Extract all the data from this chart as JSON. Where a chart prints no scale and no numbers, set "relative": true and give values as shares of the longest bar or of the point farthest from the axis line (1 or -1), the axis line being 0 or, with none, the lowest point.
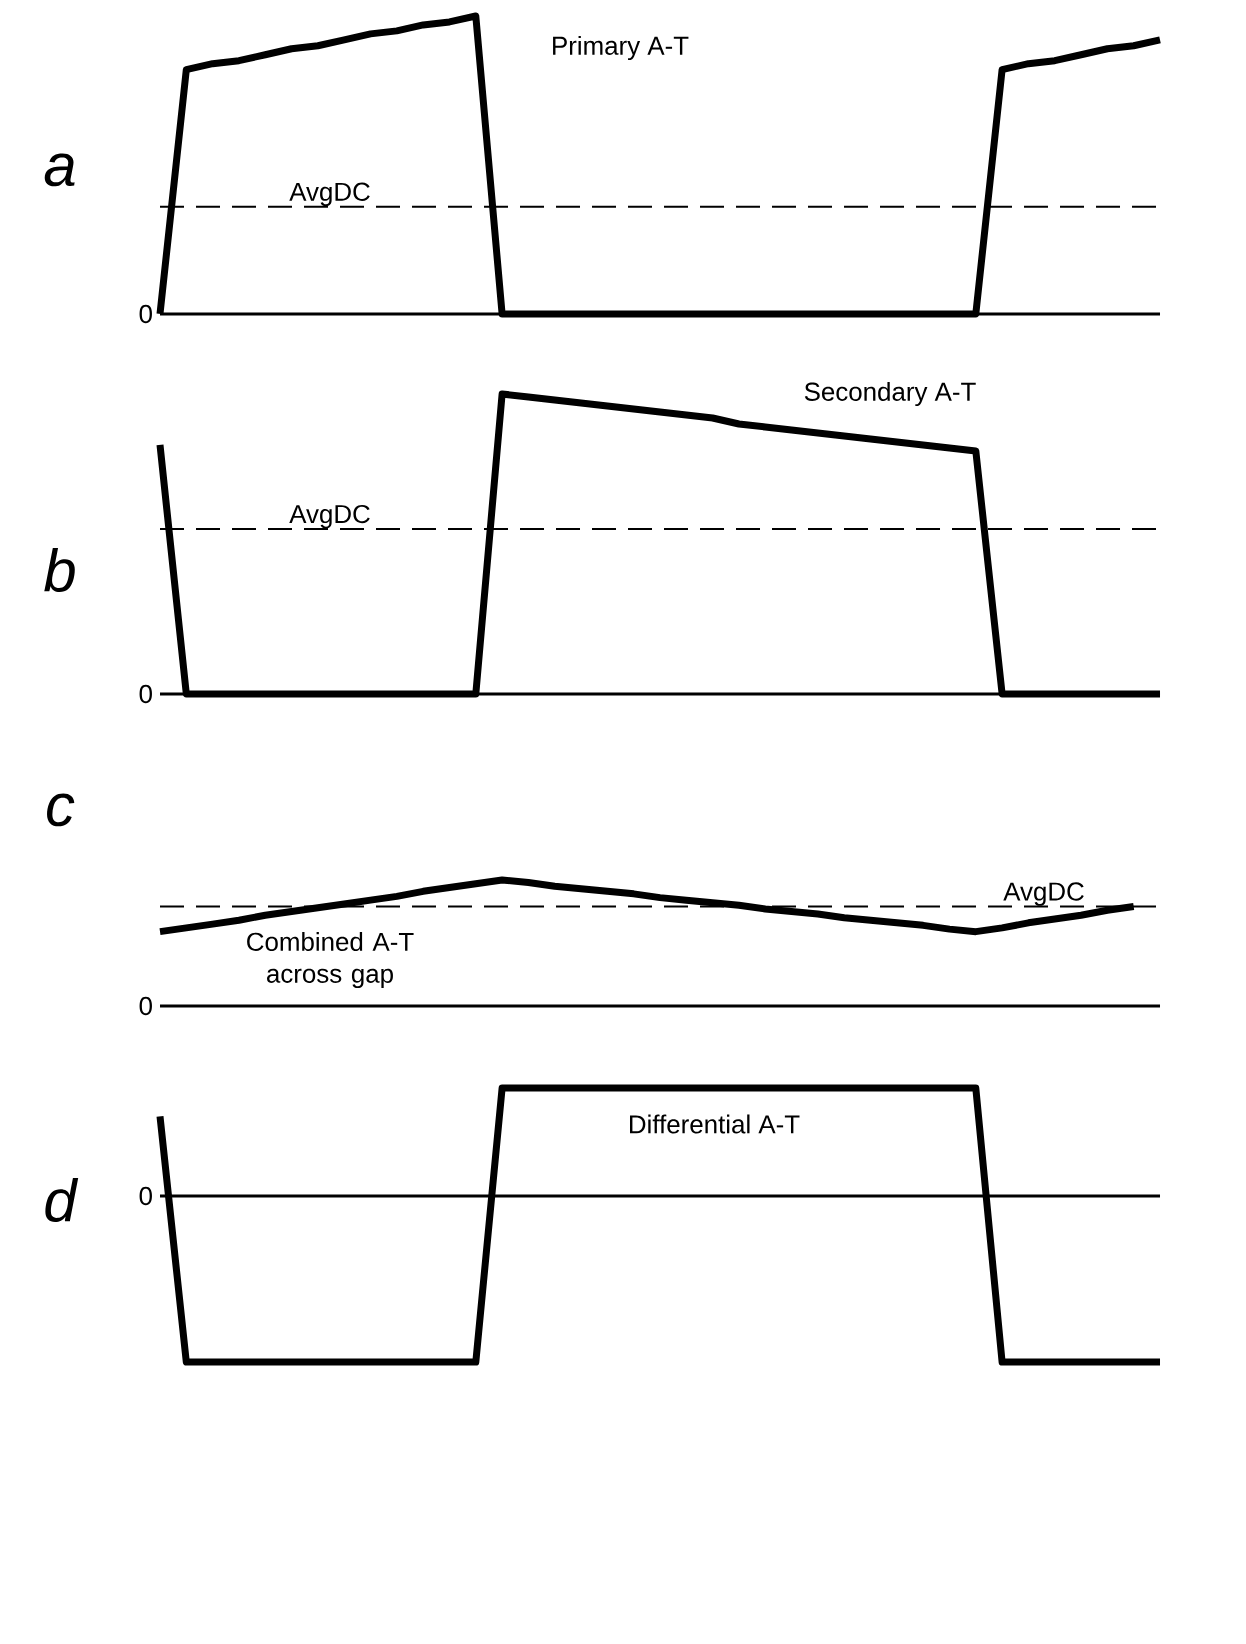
{
  "chart_data": [
    {
      "type": "line",
      "relative": true,
      "ylabel": "a",
      "marker": "none",
      "line_style": "solid",
      "categories": [
        null,
        null,
        null,
        null,
        null,
        null,
        null,
        null,
        null,
        null,
        null,
        null,
        null,
        null,
        null,
        null,
        null,
        null,
        null,
        null,
        null,
        null,
        null,
        null,
        null,
        null,
        null,
        null,
        null,
        null,
        null,
        null,
        null,
        null,
        null,
        null,
        null,
        null,
        null
      ],
      "series": [
        {
          "name": "Primary A-T",
          "color": "#000000",
          "values": [
            0,
            0.82,
            0.84,
            0.85,
            0.87,
            0.89,
            0.9,
            0.92,
            0.94,
            0.95,
            0.97,
            0.98,
            1.0,
            0,
            0,
            0,
            0,
            0,
            0,
            0,
            0,
            0,
            0,
            0,
            0,
            0,
            0,
            0,
            0,
            0,
            0,
            0,
            0.82,
            0.84,
            0.85,
            0.87,
            0.89,
            0.9,
            0.92
          ]
        }
      ],
      "ref_lines": [
        {
          "axis": "y",
          "value": 0,
          "label": "0",
          "line_style": "solid"
        },
        {
          "axis": "y",
          "value": 0.36,
          "label": "AvgDC",
          "line_style": "dashed"
        }
      ]
    },
    {
      "type": "line",
      "relative": true,
      "ylabel": "b",
      "marker": "none",
      "line_style": "solid",
      "categories": [
        null,
        null,
        null,
        null,
        null,
        null,
        null,
        null,
        null,
        null,
        null,
        null,
        null,
        null,
        null,
        null,
        null,
        null,
        null,
        null,
        null,
        null,
        null,
        null,
        null,
        null,
        null,
        null,
        null,
        null,
        null,
        null,
        null,
        null,
        null,
        null,
        null,
        null,
        null
      ],
      "series": [
        {
          "name": "Secondary A-T",
          "color": "#000000",
          "values": [
            0.83,
            0,
            0,
            0,
            0,
            0,
            0,
            0,
            0,
            0,
            0,
            0,
            0,
            1.0,
            0.99,
            0.98,
            0.97,
            0.96,
            0.95,
            0.94,
            0.93,
            0.92,
            0.9,
            0.89,
            0.88,
            0.87,
            0.86,
            0.85,
            0.84,
            0.83,
            0.82,
            0.81,
            0,
            0,
            0,
            0,
            0,
            0,
            0
          ]
        }
      ],
      "ref_lines": [
        {
          "axis": "y",
          "value": 0,
          "label": "0",
          "line_style": "solid"
        },
        {
          "axis": "y",
          "value": 0.55,
          "label": "AvgDC",
          "line_style": "dashed"
        }
      ]
    },
    {
      "type": "line",
      "relative": true,
      "ylabel": "c",
      "marker": "none",
      "line_style": "solid",
      "categories": [
        null,
        null,
        null,
        null,
        null,
        null,
        null,
        null,
        null,
        null,
        null,
        null,
        null,
        null,
        null,
        null,
        null,
        null,
        null,
        null,
        null,
        null,
        null,
        null,
        null,
        null,
        null,
        null,
        null,
        null,
        null,
        null,
        null,
        null,
        null,
        null,
        null,
        null,
        null
      ],
      "series": [
        {
          "name": "Combined A-T across gap",
          "color": "#000000",
          "values": [
            0.59,
            0.62,
            0.65,
            0.68,
            0.72,
            0.75,
            0.78,
            0.81,
            0.84,
            0.87,
            0.91,
            0.94,
            0.97,
            1.0,
            0.98,
            0.95,
            0.93,
            0.91,
            0.89,
            0.86,
            0.84,
            0.82,
            0.8,
            0.77,
            0.75,
            0.73,
            0.7,
            0.68,
            0.66,
            0.64,
            0.61,
            0.59,
            0.62,
            0.66,
            0.69,
            0.72,
            0.76,
            0.79,
            null
          ]
        }
      ],
      "ref_lines": [
        {
          "axis": "y",
          "value": 0,
          "label": "0",
          "line_style": "solid"
        },
        {
          "axis": "y",
          "value": 0.79,
          "label": "AvgDC",
          "line_style": "dashed"
        }
      ]
    },
    {
      "type": "line",
      "relative": true,
      "ylabel": "d",
      "marker": "none",
      "line_style": "solid",
      "categories": [
        null,
        null,
        null,
        null,
        null,
        null,
        null,
        null,
        null,
        null,
        null,
        null,
        null,
        null,
        null,
        null,
        null,
        null,
        null,
        null,
        null,
        null,
        null,
        null,
        null,
        null,
        null,
        null,
        null,
        null,
        null,
        null,
        null,
        null,
        null,
        null,
        null,
        null,
        null
      ],
      "series": [
        {
          "name": "Differential A-T",
          "color": "#000000",
          "values": [
            0.48,
            -1,
            -1,
            -1,
            -1,
            -1,
            -1,
            -1,
            -1,
            -1,
            -1,
            -1,
            -1,
            0.65,
            0.65,
            0.65,
            0.65,
            0.65,
            0.65,
            0.65,
            0.65,
            0.65,
            0.65,
            0.65,
            0.65,
            0.65,
            0.65,
            0.65,
            0.65,
            0.65,
            0.65,
            0.65,
            -1,
            -1,
            -1,
            -1,
            -1,
            -1,
            -1
          ]
        }
      ],
      "ref_lines": [
        {
          "axis": "y",
          "value": 0,
          "label": "0",
          "line_style": "solid"
        }
      ]
    }
  ]
}
